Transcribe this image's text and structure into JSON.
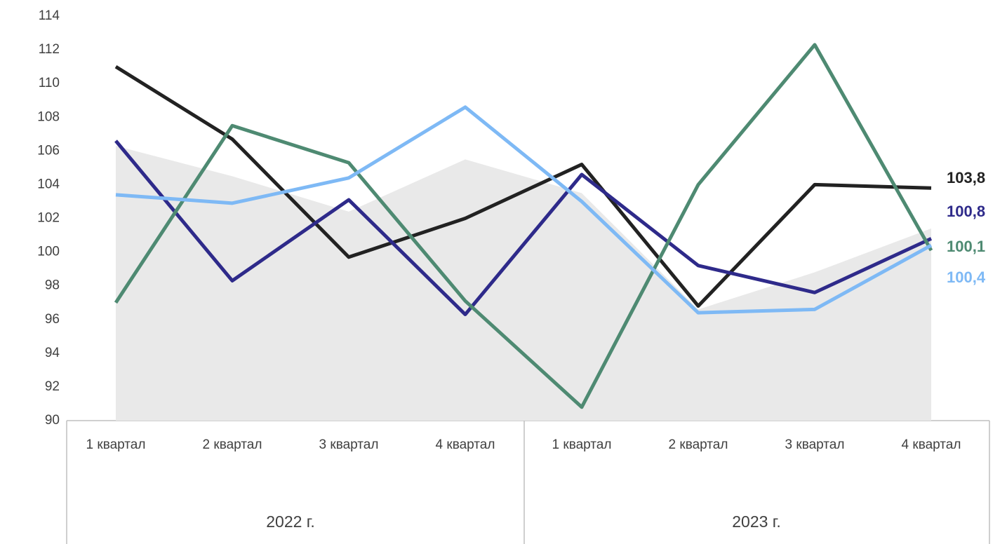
{
  "chart_data": {
    "type": "line",
    "categories": [
      "1 квартал",
      "2 квартал",
      "3 квартал",
      "4 квартал",
      "1 квартал",
      "2 квартал",
      "3 квартал",
      "4 квартал"
    ],
    "groups": [
      "2022 г.",
      "2023 г."
    ],
    "ylim": [
      90,
      114
    ],
    "yticks": [
      90,
      92,
      94,
      96,
      98,
      100,
      102,
      104,
      106,
      108,
      110,
      112,
      114
    ],
    "area": {
      "color": "#e9e9e9",
      "values": [
        106.3,
        104.5,
        102.4,
        105.5,
        103.5,
        96.6,
        98.8,
        101.4
      ]
    },
    "series": [
      {
        "color": "#222222",
        "values": [
          111,
          106.7,
          99.7,
          102,
          105.2,
          96.8,
          104,
          103.8
        ],
        "value_labels": [
          null,
          null,
          null,
          null,
          null,
          null,
          null,
          "103,8"
        ]
      },
      {
        "color": "#2e2a8a",
        "values": [
          106.6,
          98.3,
          103.1,
          96.3,
          104.6,
          99.2,
          97.6,
          100.8
        ],
        "value_labels": [
          null,
          null,
          null,
          null,
          null,
          null,
          null,
          "100,8"
        ]
      },
      {
        "color": "#4e8a72",
        "values": [
          97,
          107.5,
          105.3,
          97.1,
          90.8,
          104,
          112.3,
          100.1
        ],
        "value_labels": [
          null,
          null,
          null,
          null,
          null,
          null,
          null,
          "100,1"
        ]
      },
      {
        "color": "#7eb9f5",
        "values": [
          103.4,
          102.9,
          104.4,
          108.6,
          103,
          96.4,
          96.6,
          100.4
        ],
        "value_labels": [
          null,
          null,
          null,
          null,
          null,
          null,
          null,
          "100,4"
        ]
      }
    ]
  }
}
